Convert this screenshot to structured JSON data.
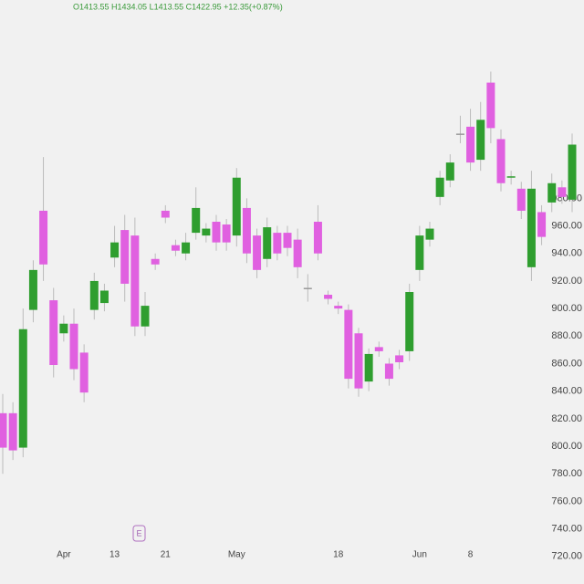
{
  "chart_data": {
    "type": "candlestick",
    "title": "O1413.55 H1434.05 L1413.55 C1422.95 +12.35(+0.87%)",
    "annotations": [
      "E"
    ],
    "up_color": "#2f9e2f",
    "down_color": "#e060e0",
    "grid": false,
    "categories": [
      null,
      null,
      null,
      null,
      null,
      null,
      "Apr",
      null,
      null,
      null,
      null,
      "13",
      null,
      null,
      null,
      null,
      "21",
      null,
      null,
      null,
      null,
      null,
      null,
      "May",
      null,
      null,
      null,
      null,
      null,
      null,
      null,
      null,
      null,
      "18",
      null,
      null,
      null,
      null,
      null,
      null,
      null,
      "Jun",
      null,
      null,
      null,
      null,
      "8",
      null,
      null,
      null,
      null,
      null,
      null,
      null,
      null,
      null,
      null
    ],
    "open": [
      824,
      824,
      799,
      899,
      971,
      906,
      882,
      889,
      868,
      899,
      904,
      937,
      957,
      953,
      887,
      936,
      971,
      946,
      940,
      955,
      953,
      963,
      961,
      953,
      973,
      953,
      936,
      955,
      955,
      950,
      915,
      963,
      910,
      902,
      899,
      882,
      847,
      872,
      860,
      866,
      869,
      928,
      950,
      981,
      993,
      1027,
      1032,
      1008,
      1064,
      1023,
      995,
      987,
      930,
      970,
      977,
      988,
      979
    ],
    "high": [
      838,
      832,
      900,
      935,
      1010,
      915,
      895,
      900,
      874,
      926,
      918,
      960,
      968,
      966,
      912,
      940,
      975,
      950,
      955,
      988,
      962,
      968,
      965,
      1002,
      980,
      958,
      966,
      960,
      960,
      958,
      925,
      975,
      913,
      905,
      903,
      886,
      871,
      876,
      864,
      870,
      918,
      960,
      963,
      1000,
      1012,
      1040,
      1045,
      1050,
      1072,
      1030,
      1000,
      992,
      1000,
      975,
      998,
      993,
      1027
    ],
    "low": [
      780,
      790,
      792,
      890,
      920,
      850,
      876,
      848,
      832,
      892,
      898,
      930,
      905,
      880,
      880,
      928,
      962,
      938,
      935,
      950,
      948,
      942,
      942,
      945,
      933,
      922,
      930,
      935,
      938,
      922,
      905,
      935,
      903,
      896,
      842,
      836,
      840,
      865,
      844,
      856,
      862,
      920,
      945,
      975,
      988,
      1020,
      1000,
      1000,
      1020,
      985,
      990,
      965,
      920,
      946,
      970,
      976,
      970
    ],
    "close": [
      799,
      797,
      885,
      928,
      932,
      859,
      889,
      856,
      839,
      920,
      913,
      948,
      918,
      887,
      902,
      932,
      966,
      942,
      948,
      973,
      958,
      948,
      948,
      995,
      940,
      928,
      959,
      940,
      944,
      930,
      915,
      940,
      907,
      900,
      849,
      842,
      867,
      869,
      849,
      861,
      912,
      953,
      958,
      995,
      1006,
      1027,
      1006,
      1037,
      1031,
      991,
      996,
      971,
      987,
      952,
      991,
      981,
      1019
    ],
    "ylim": [
      700,
      1124
    ],
    "yticks": [
      {
        "value": 720,
        "label": "720.00"
      },
      {
        "value": 740,
        "label": "740.00"
      },
      {
        "value": 760,
        "label": "760.00"
      },
      {
        "value": 780,
        "label": "780.00"
      },
      {
        "value": 800,
        "label": "800.00"
      },
      {
        "value": 820,
        "label": "820.00"
      },
      {
        "value": 840,
        "label": "840.00"
      },
      {
        "value": 860,
        "label": "860.00"
      },
      {
        "value": 880,
        "label": "880.00"
      },
      {
        "value": 900,
        "label": "900.00"
      },
      {
        "value": 920,
        "label": "920.00"
      },
      {
        "value": 940,
        "label": "940.00"
      },
      {
        "value": 960,
        "label": "960.00"
      },
      {
        "value": 980,
        "label": "980.00"
      }
    ]
  }
}
